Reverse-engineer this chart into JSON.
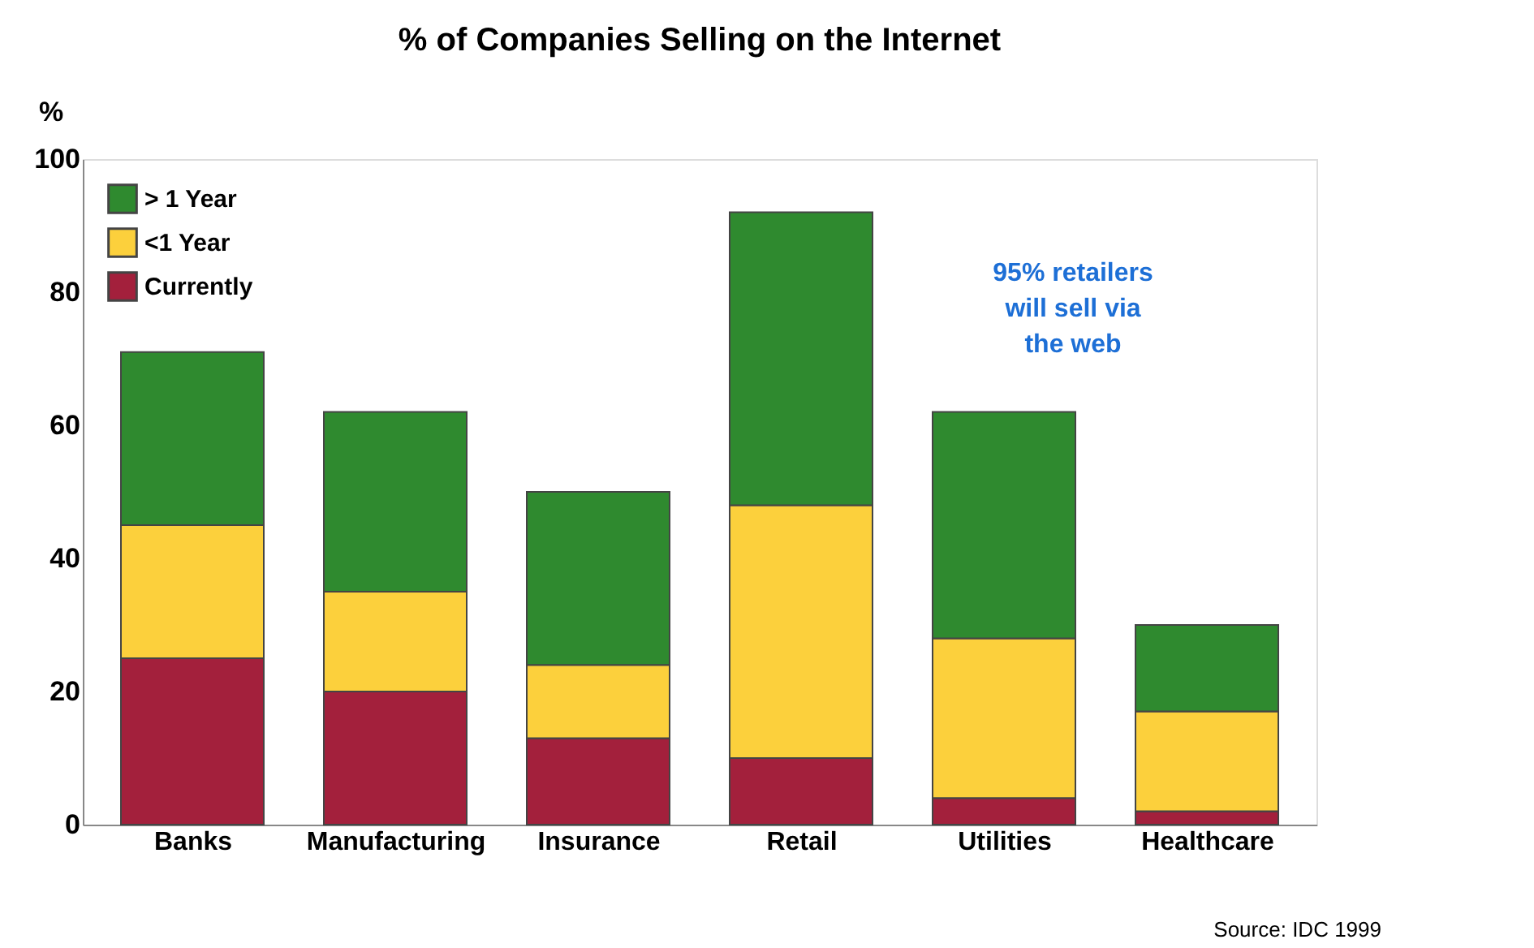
{
  "chart_data": {
    "type": "bar",
    "title": "% of Companies Selling on the Internet",
    "ylabel": "%",
    "categories": [
      "Banks",
      "Manufacturing",
      "Insurance",
      "Retail",
      "Utilities",
      "Healthcare"
    ],
    "stacked": true,
    "series": [
      {
        "name": "Currently",
        "color": "#a3203c",
        "values": [
          25,
          20,
          13,
          10,
          4,
          2
        ]
      },
      {
        "name": "<1 Year",
        "color": "#fcd03c",
        "values": [
          20,
          15,
          11,
          38,
          24,
          15
        ]
      },
      {
        "name": "> 1 Year",
        "color": "#2f8a2f",
        "values": [
          26,
          27,
          26,
          44,
          34,
          13
        ]
      }
    ],
    "ylim": [
      0,
      100
    ],
    "yticks": [
      0,
      20,
      40,
      60,
      80,
      100
    ],
    "grid": false,
    "legend": "top left",
    "annotations": [
      "95% retailers will sell via the web",
      "Source: IDC 1999"
    ]
  }
}
